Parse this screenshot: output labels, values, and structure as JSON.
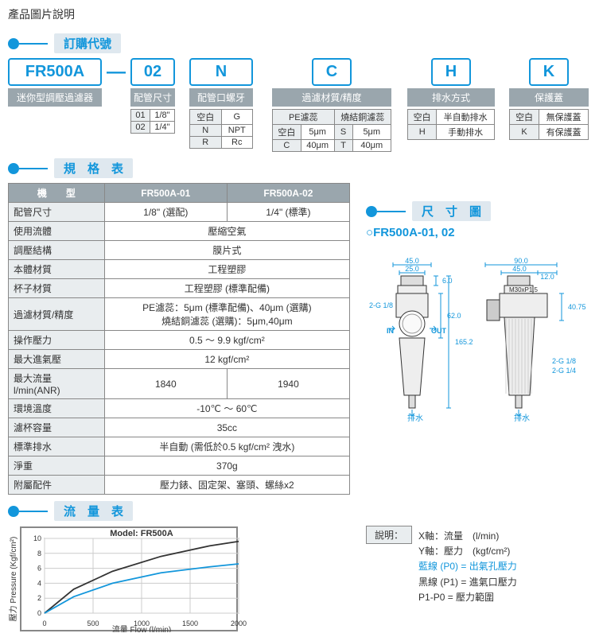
{
  "page_title": "產品圖片說明",
  "sections": {
    "order": "訂購代號",
    "spec": "規　格　表",
    "flow": "流　量　表",
    "dim": "尺　寸　圖"
  },
  "order_code": {
    "parts": [
      "FR500A",
      "02",
      "N",
      "C",
      "H",
      "K"
    ],
    "dash": "—",
    "labels": [
      "迷你型調壓過濾器",
      "配管尺寸",
      "配管口螺牙",
      "過濾材質/精度",
      "排水方式",
      "保護蓋"
    ],
    "pipe_size": [
      [
        "01",
        "1/8\""
      ],
      [
        "02",
        "1/4\""
      ]
    ],
    "thread": [
      [
        "空白",
        "G"
      ],
      [
        "N",
        "NPT"
      ],
      [
        "R",
        "Rc"
      ]
    ],
    "filter_hdr": [
      "PE濾蕊",
      "燒結銅濾蕊"
    ],
    "filter": [
      [
        "空白",
        "5μm",
        "S",
        "5μm"
      ],
      [
        "C",
        "40μm",
        "T",
        "40μm"
      ]
    ],
    "drain": [
      [
        "空白",
        "半自動排水"
      ],
      [
        "H",
        "手動排水"
      ]
    ],
    "cover": [
      [
        "空白",
        "無保護蓋"
      ],
      [
        "K",
        "有保護蓋"
      ]
    ]
  },
  "spec": {
    "headers": [
      "機　　型",
      "FR500A-01",
      "FR500A-02"
    ],
    "rows": [
      {
        "label": "配管尺寸",
        "c1": "1/8\" (選配)",
        "c2": "1/4\" (標準)"
      },
      {
        "label": "使用流體",
        "span": "壓縮空氣"
      },
      {
        "label": "調壓結構",
        "span": "膜片式"
      },
      {
        "label": "本體材質",
        "span": "工程塑膠"
      },
      {
        "label": "杯子材質",
        "span": "工程塑膠 (標準配備)"
      },
      {
        "label": "過濾材質/精度",
        "span": "PE濾蕊：5μm (標準配備)、40μm (選購)\n燒結銅濾蕊 (選購)：5μm,40μm"
      },
      {
        "label": "操作壓力",
        "span": "0.5 ～ 9.9 kgf/cm²"
      },
      {
        "label": "最大進氣壓",
        "span": "12 kgf/cm²"
      },
      {
        "label": "最大流量\nl/min(ANR)",
        "c1": "1840",
        "c2": "1940"
      },
      {
        "label": "環境溫度",
        "span": "-10℃ ～ 60℃"
      },
      {
        "label": "濾杯容量",
        "span": "35cc"
      },
      {
        "label": "標準排水",
        "span": "半自動 (需低於0.5 kgf/cm² 洩水)"
      },
      {
        "label": "淨重",
        "span": "370g"
      },
      {
        "label": "附屬配件",
        "span": "壓力錶、固定架、塞頭、螺絲x2"
      }
    ]
  },
  "dim": {
    "model": "FR500A-01, 02",
    "values": {
      "w_total": "90.0",
      "w_mid": "45.0",
      "w_side": "12.0",
      "left_w": "45.0",
      "left_wi": "25.0",
      "left_top": "6.0",
      "thread_top": "M30xP1.5",
      "port": "2-G 1/8",
      "h_mid": "62.0",
      "h_total": "165.2",
      "h_side": "40.75",
      "port_r1": "2-G 1/8",
      "port_r2": "2-G 1/4",
      "in": "IN",
      "out": "OUT",
      "drain": "排水"
    },
    "colors": {
      "line": "#333",
      "accent": "#1296db"
    }
  },
  "flow": {
    "chart_title": "Model:  FR500A",
    "y_label": "壓力 Pressure (Kgf/cm²)",
    "x_label": "流量 Flow (l/min)",
    "x_ticks": [
      "0",
      "500",
      "1000",
      "1500",
      "2000"
    ],
    "y_ticks": [
      "0",
      "2",
      "4",
      "6",
      "8",
      "10"
    ],
    "xlim": [
      0,
      2000
    ],
    "ylim": [
      0,
      10
    ],
    "series": {
      "P1": {
        "color": "#333",
        "points": [
          [
            0,
            0
          ],
          [
            300,
            3.2
          ],
          [
            700,
            5.6
          ],
          [
            1200,
            7.6
          ],
          [
            1700,
            9.0
          ],
          [
            2000,
            9.6
          ]
        ]
      },
      "P0": {
        "color": "#1296db",
        "points": [
          [
            0,
            0
          ],
          [
            300,
            2.2
          ],
          [
            700,
            4.0
          ],
          [
            1200,
            5.4
          ],
          [
            1700,
            6.2
          ],
          [
            2000,
            6.6
          ]
        ]
      }
    }
  },
  "legend": {
    "title": "說明：",
    "lines": [
      "X軸：流量　(l/min)",
      "Y軸：壓力　(kgf/cm²)",
      "藍線  (P0)  = 出氣孔壓力",
      "黑線  (P1)  = 進氣口壓力",
      "P1-P0 = 壓力範圍"
    ]
  }
}
